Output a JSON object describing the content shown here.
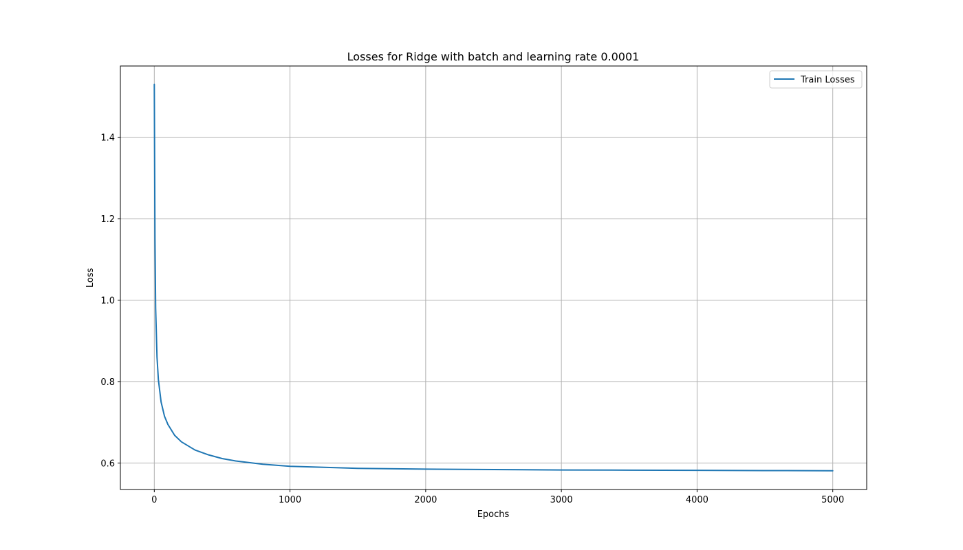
{
  "chart_data": {
    "type": "line",
    "title": "Losses for Ridge with batch and learning rate 0.0001",
    "xlabel": "Epochs",
    "ylabel": "Loss",
    "xlim": [
      -250,
      5250
    ],
    "ylim": [
      0.535,
      1.575
    ],
    "xticks": [
      0,
      1000,
      2000,
      3000,
      4000,
      5000
    ],
    "yticks": [
      0.6,
      0.8,
      1.0,
      1.2,
      1.4
    ],
    "xtick_labels": [
      "0",
      "1000",
      "2000",
      "3000",
      "4000",
      "5000"
    ],
    "ytick_labels": [
      "0.6",
      "0.8",
      "1.0",
      "1.2",
      "1.4"
    ],
    "grid": true,
    "legend_position": "upper right",
    "series": [
      {
        "name": "Train Losses",
        "color": "#1f77b4",
        "x": [
          0,
          5,
          10,
          20,
          30,
          50,
          75,
          100,
          150,
          200,
          300,
          400,
          500,
          600,
          800,
          1000,
          1500,
          2000,
          2500,
          3000,
          3500,
          4000,
          4500,
          5000
        ],
        "y": [
          1.53,
          1.15,
          0.98,
          0.86,
          0.805,
          0.75,
          0.715,
          0.695,
          0.668,
          0.652,
          0.632,
          0.62,
          0.611,
          0.605,
          0.597,
          0.592,
          0.587,
          0.585,
          0.584,
          0.583,
          0.5825,
          0.582,
          0.5815,
          0.581
        ]
      }
    ]
  }
}
